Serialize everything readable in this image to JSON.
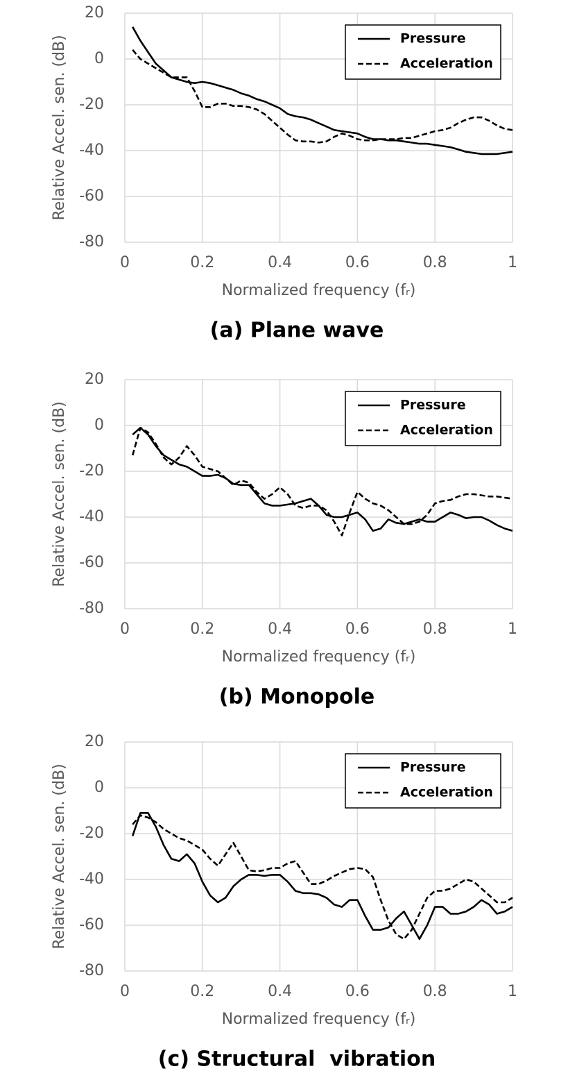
{
  "chart_data": [
    {
      "type": "line",
      "title": "(a) Plane wave",
      "x_label": "Normalized frequency (fᵣ)",
      "y_label": "Relative Accel. sen. (dB)",
      "x": [
        0.02,
        0.04,
        0.06,
        0.08,
        0.1,
        0.12,
        0.14,
        0.16,
        0.18,
        0.2,
        0.22,
        0.24,
        0.26,
        0.28,
        0.3,
        0.32,
        0.34,
        0.36,
        0.38,
        0.4,
        0.42,
        0.44,
        0.46,
        0.48,
        0.5,
        0.52,
        0.54,
        0.56,
        0.58,
        0.6,
        0.62,
        0.64,
        0.66,
        0.68,
        0.7,
        0.72,
        0.74,
        0.76,
        0.78,
        0.8,
        0.82,
        0.84,
        0.86,
        0.88,
        0.9,
        0.92,
        0.94,
        0.96,
        0.98,
        1
      ],
      "series": [
        {
          "name": "Pressure",
          "color": "#000000",
          "dashed": false,
          "values": [
            14,
            8,
            3,
            -2,
            -5,
            -8,
            -9,
            -10,
            -10.5,
            -10,
            -10.5,
            -11.5,
            -12.5,
            -13.5,
            -15,
            -16,
            -17.5,
            -18.5,
            -20,
            -21.5,
            -24,
            -25,
            -25.5,
            -26.5,
            -28,
            -29.5,
            -31,
            -31.5,
            -32,
            -32.5,
            -34,
            -35,
            -35,
            -35.5,
            -35.5,
            -36,
            -36.5,
            -37,
            -37,
            -37.5,
            -38,
            -38.5,
            -39.5,
            -40.5,
            -41,
            -41.5,
            -41.5,
            -41.5,
            -41,
            -40.5
          ]
        },
        {
          "name": "Acceleration",
          "color": "#000000",
          "dashed": true,
          "values": [
            4,
            0,
            -2,
            -4,
            -6,
            -8,
            -8,
            -8,
            -14,
            -21,
            -21,
            -19.5,
            -19.5,
            -20.5,
            -20.5,
            -21,
            -22,
            -24,
            -27,
            -30,
            -33,
            -35.5,
            -36,
            -36,
            -36.5,
            -36,
            -34,
            -32.5,
            -33.5,
            -35,
            -35.5,
            -35.5,
            -35,
            -35,
            -35,
            -34.5,
            -34.5,
            -33.5,
            -32.5,
            -31.5,
            -31,
            -30,
            -28,
            -26.5,
            -25.5,
            -25.5,
            -27,
            -29,
            -30.5,
            -31
          ]
        }
      ],
      "xlim": [
        0,
        1
      ],
      "xticks": [
        0,
        0.2,
        0.4,
        0.6,
        0.8,
        1
      ],
      "ylim": [
        -80,
        20
      ],
      "yticks": [
        -80,
        -60,
        -40,
        -20,
        0,
        20
      ],
      "grid": true,
      "legend": "upper right"
    },
    {
      "type": "line",
      "title": "(b) Monopole",
      "x_label": "Normalized frequency (fᵣ)",
      "y_label": "Relative Accel. sen. (dB)",
      "x": [
        0.02,
        0.04,
        0.06,
        0.08,
        0.1,
        0.12,
        0.14,
        0.16,
        0.18,
        0.2,
        0.22,
        0.24,
        0.26,
        0.28,
        0.3,
        0.32,
        0.34,
        0.36,
        0.38,
        0.4,
        0.42,
        0.44,
        0.46,
        0.48,
        0.5,
        0.52,
        0.54,
        0.56,
        0.58,
        0.6,
        0.62,
        0.64,
        0.66,
        0.68,
        0.7,
        0.72,
        0.74,
        0.76,
        0.78,
        0.8,
        0.82,
        0.84,
        0.86,
        0.88,
        0.9,
        0.92,
        0.94,
        0.96,
        0.98,
        1
      ],
      "series": [
        {
          "name": "Pressure",
          "color": "#000000",
          "dashed": false,
          "values": [
            -4,
            -1,
            -4,
            -9,
            -13,
            -15,
            -17,
            -18,
            -20,
            -22,
            -22,
            -21.5,
            -23,
            -25.5,
            -26,
            -26,
            -30,
            -34,
            -35,
            -35,
            -34.5,
            -34,
            -33,
            -32,
            -35,
            -39,
            -40,
            -40,
            -39,
            -38,
            -41,
            -46,
            -45,
            -41,
            -42.5,
            -43,
            -42,
            -41,
            -42,
            -42,
            -40,
            -38,
            -39,
            -40.5,
            -40,
            -40,
            -41.5,
            -43.5,
            -45,
            -46
          ]
        },
        {
          "name": "Acceleration",
          "color": "#000000",
          "dashed": true,
          "values": [
            -13,
            -1,
            -3,
            -8,
            -14,
            -17,
            -14,
            -9,
            -13,
            -18,
            -19,
            -20,
            -23,
            -26,
            -24,
            -25,
            -29,
            -32,
            -30,
            -27,
            -30,
            -35,
            -36,
            -35,
            -35,
            -37,
            -42,
            -48,
            -38,
            -29,
            -32,
            -34,
            -35,
            -37,
            -40,
            -43,
            -43,
            -42,
            -39,
            -34,
            -33,
            -32.5,
            -31,
            -30,
            -30,
            -30.5,
            -31,
            -31,
            -31.5,
            -32
          ]
        }
      ],
      "xlim": [
        0,
        1
      ],
      "xticks": [
        0,
        0.2,
        0.4,
        0.6,
        0.8,
        1
      ],
      "ylim": [
        -80,
        20
      ],
      "yticks": [
        -80,
        -60,
        -40,
        -20,
        0,
        20
      ],
      "grid": true,
      "legend": "upper right"
    },
    {
      "type": "line",
      "title": "(c) Structural  vibration",
      "x_label": "Normalized frequency (fᵣ)",
      "y_label": "Relative Accel. sen. (dB)",
      "x": [
        0.02,
        0.04,
        0.06,
        0.08,
        0.1,
        0.12,
        0.14,
        0.16,
        0.18,
        0.2,
        0.22,
        0.24,
        0.26,
        0.28,
        0.3,
        0.32,
        0.34,
        0.36,
        0.38,
        0.4,
        0.42,
        0.44,
        0.46,
        0.48,
        0.5,
        0.52,
        0.54,
        0.56,
        0.58,
        0.6,
        0.62,
        0.64,
        0.66,
        0.68,
        0.7,
        0.72,
        0.74,
        0.76,
        0.78,
        0.8,
        0.82,
        0.84,
        0.86,
        0.88,
        0.9,
        0.92,
        0.94,
        0.96,
        0.98,
        1
      ],
      "series": [
        {
          "name": "Pressure",
          "color": "#000000",
          "dashed": false,
          "values": [
            -21,
            -11,
            -11,
            -17,
            -25,
            -31,
            -32,
            -29,
            -33,
            -41,
            -47,
            -50,
            -48,
            -43,
            -40,
            -38,
            -38,
            -38.5,
            -38,
            -38,
            -41,
            -45,
            -46,
            -46,
            -46.5,
            -48,
            -51,
            -52,
            -49,
            -49,
            -56,
            -62,
            -62,
            -61,
            -57,
            -54,
            -60,
            -66,
            -60,
            -52,
            -52,
            -55,
            -55,
            -54,
            -52,
            -49,
            -51,
            -55,
            -54,
            -52
          ]
        },
        {
          "name": "Acceleration",
          "color": "#000000",
          "dashed": true,
          "values": [
            -16,
            -12,
            -13,
            -15,
            -18,
            -20,
            -22,
            -23,
            -25,
            -27,
            -31,
            -34,
            -29,
            -24,
            -30,
            -36,
            -36.5,
            -36,
            -35,
            -35,
            -33,
            -32,
            -37,
            -42,
            -42,
            -40.5,
            -38.5,
            -37,
            -35.5,
            -35,
            -35.5,
            -39,
            -49,
            -58,
            -64,
            -66,
            -62,
            -55,
            -48,
            -45,
            -45,
            -44,
            -42,
            -40,
            -41,
            -44,
            -47,
            -50,
            -50,
            -48
          ]
        }
      ],
      "xlim": [
        0,
        1
      ],
      "xticks": [
        0,
        0.2,
        0.4,
        0.6,
        0.8,
        1
      ],
      "ylim": [
        -80,
        20
      ],
      "yticks": [
        -80,
        -60,
        -40,
        -20,
        0,
        20
      ],
      "grid": true,
      "legend": "upper right"
    }
  ]
}
